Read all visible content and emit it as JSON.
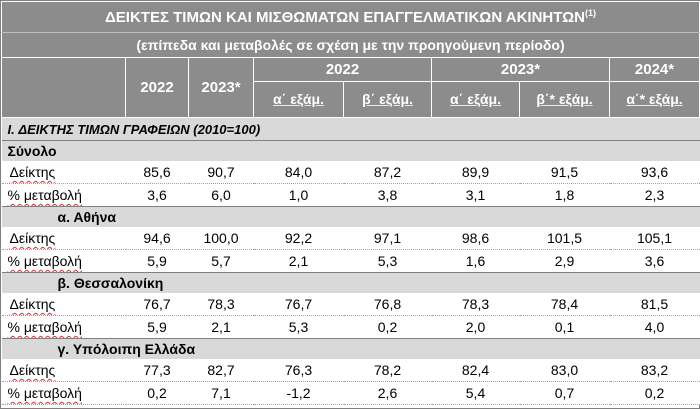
{
  "title": "ΔΕΙΚΤΕΣ ΤΙΜΩΝ ΚΑΙ ΜΙΣΘΩΜΑΤΩΝ ΕΠΑΓΓΕΛΜΑΤΙΚΩΝ ΑΚΙΝΗΤΩΝ",
  "title_sup": "(1)",
  "subtitle": "(επίπεδα και μεταβολές σε σχέση με την προηγούμενη περίοδο)",
  "columns": {
    "annual": [
      "2022",
      "2023*"
    ],
    "groups": [
      "2022",
      "2023*",
      "2024*"
    ],
    "sub": [
      "α΄ εξάμ.",
      "β΄ εξάμ.",
      "α΄ εξάμ.",
      "β΄* εξάμ.",
      "α΄* εξάμ."
    ]
  },
  "section": "I. ΔΕΙΚΤΗΣ ΤΙΜΩΝ ΓΡΑΦΕΙΩΝ (2010=100)",
  "row_labels": {
    "index": "Δείκτης",
    "change": "% μεταβολή"
  },
  "groups": [
    {
      "name": "Σύνολο",
      "index": [
        "85,6",
        "90,7",
        "84,0",
        "87,2",
        "89,9",
        "91,5",
        "93,6"
      ],
      "change": [
        "3,6",
        "6,0",
        "1,0",
        "3,8",
        "3,1",
        "1,8",
        "2,3"
      ]
    },
    {
      "name": "α.  Αθήνα",
      "index": [
        "94,6",
        "100,0",
        "92,2",
        "97,1",
        "98,6",
        "101,5",
        "105,1"
      ],
      "change": [
        "5,9",
        "5,7",
        "2,1",
        "5,3",
        "1,6",
        "2,9",
        "3,6"
      ]
    },
    {
      "name": "β.  Θεσσαλονίκη",
      "index": [
        "76,7",
        "78,3",
        "76,7",
        "76,8",
        "78,3",
        "78,4",
        "81,5"
      ],
      "change": [
        "5,9",
        "2,1",
        "5,3",
        "0,2",
        "2,0",
        "0,1",
        "4,0"
      ]
    },
    {
      "name": "γ. Υπόλοιπη Ελλάδα",
      "index": [
        "77,3",
        "82,7",
        "76,3",
        "78,2",
        "82,4",
        "83,0",
        "83,2"
      ],
      "change": [
        "0,2",
        "7,1",
        "-1,2",
        "2,6",
        "5,4",
        "0,7",
        "0,2"
      ]
    }
  ]
}
